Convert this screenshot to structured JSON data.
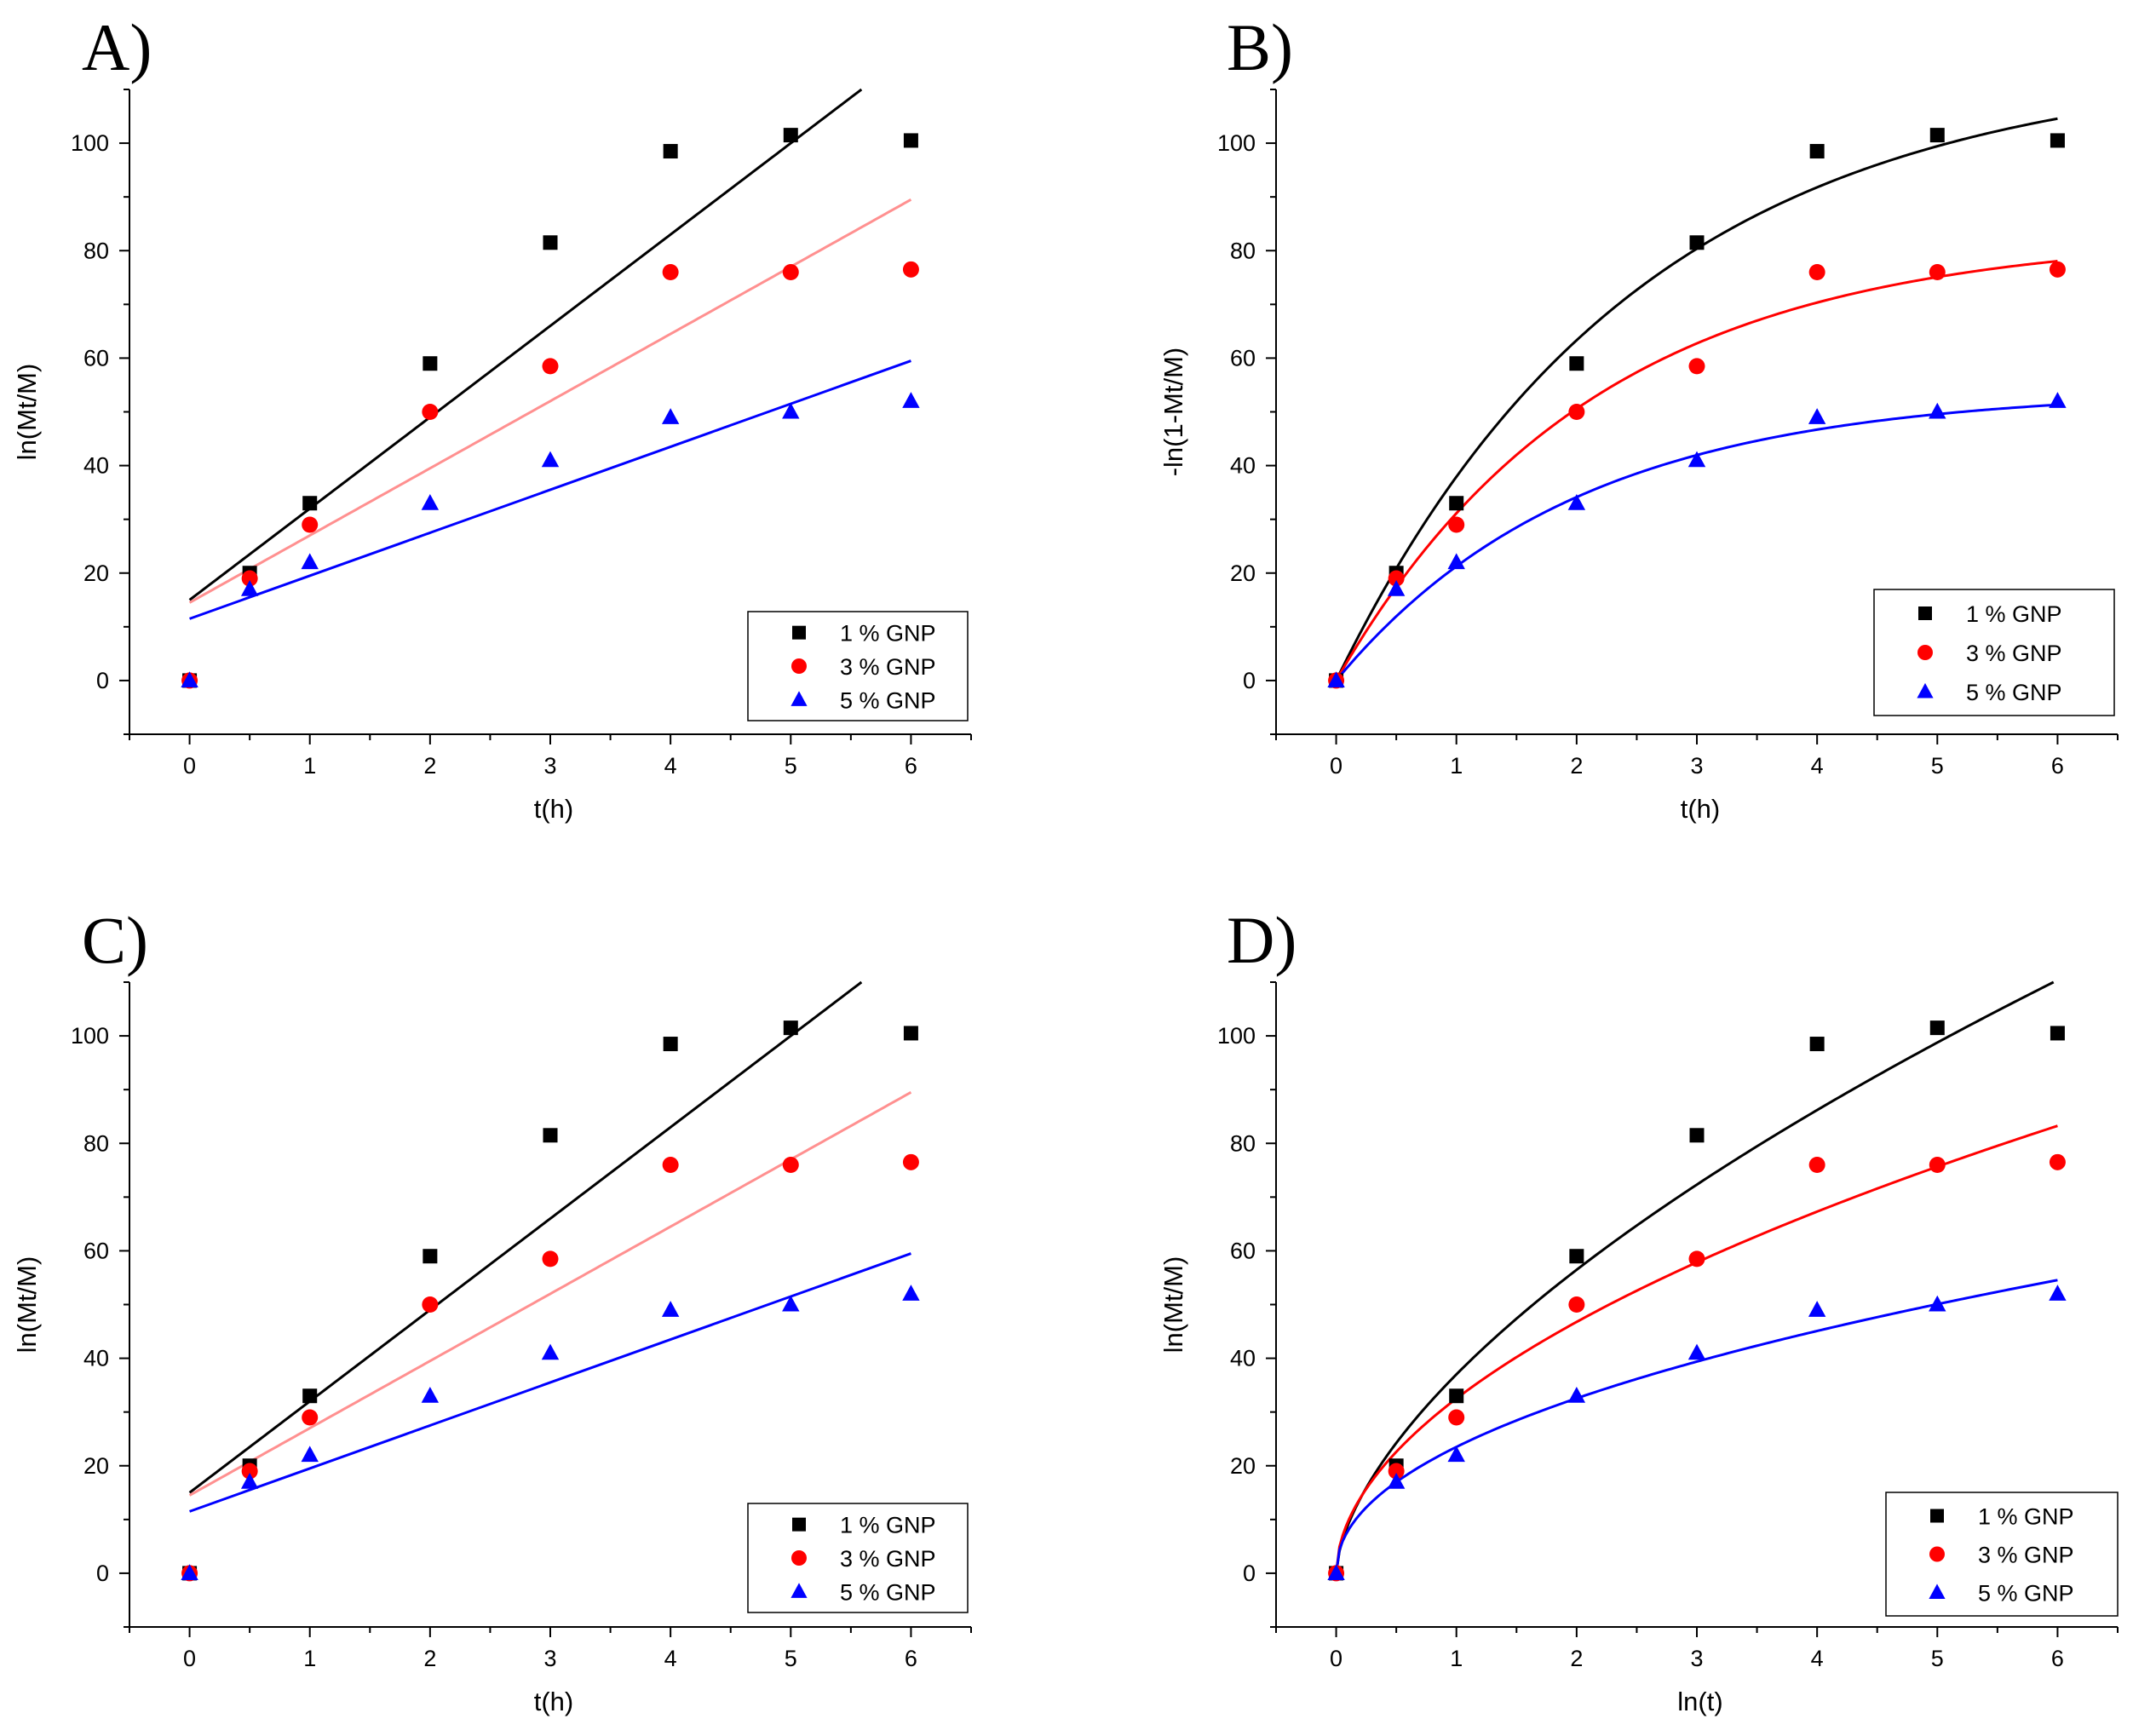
{
  "chart_data": [
    {
      "panel": "A)",
      "type": "scatter",
      "xlabel": "t(h)",
      "ylabel": "ln(Mt/M)",
      "xlim": [
        -0.5,
        6.5
      ],
      "ylim": [
        -10,
        110
      ],
      "xticks": [
        0,
        1,
        2,
        3,
        4,
        5,
        6
      ],
      "yticks": [
        0,
        20,
        40,
        60,
        80,
        100
      ],
      "x": [
        0,
        0.5,
        1,
        2,
        3,
        4,
        5,
        6
      ],
      "legend": "bottom-right",
      "series": [
        {
          "name": "1 % GNP",
          "color": "#000000",
          "marker": "square",
          "values": [
            0,
            20,
            33,
            59,
            81.5,
            98.5,
            101.5,
            100.5
          ],
          "fit": {
            "kind": "linear",
            "a": 15,
            "b": 17,
            "line_color": "#000000"
          }
        },
        {
          "name": "3 % GNP",
          "color": "#ff0000",
          "marker": "circle",
          "values": [
            0,
            19,
            29,
            50,
            58.5,
            76,
            76,
            76.5
          ],
          "fit": {
            "kind": "linear",
            "a": 14.5,
            "b": 12.5,
            "line_color": "#ff9090"
          }
        },
        {
          "name": "5 % GNP",
          "color": "#0000ff",
          "marker": "triangle",
          "values": [
            0,
            17,
            22,
            33,
            41,
            49,
            50,
            52
          ],
          "fit": {
            "kind": "linear",
            "a": 11.5,
            "b": 8,
            "line_color": "#0000ff"
          }
        }
      ]
    },
    {
      "panel": "B)",
      "type": "scatter",
      "xlabel": "t(h)",
      "ylabel": "-ln(1-Mt/M)",
      "xlim": [
        -0.5,
        6.5
      ],
      "ylim": [
        -10,
        110
      ],
      "xticks": [
        0,
        1,
        2,
        3,
        4,
        5,
        6
      ],
      "yticks": [
        0,
        20,
        40,
        60,
        80,
        100
      ],
      "x": [
        0,
        0.5,
        1,
        2,
        3,
        4,
        5,
        6
      ],
      "legend": "bottom-right",
      "series": [
        {
          "name": "1 % GNP",
          "color": "#000000",
          "marker": "square",
          "values": [
            0,
            20,
            33,
            59,
            81.5,
            98.5,
            101.5,
            100.5
          ],
          "fit": {
            "kind": "exp",
            "A": 115,
            "k": 0.4,
            "line_color": "#000000"
          }
        },
        {
          "name": "3 % GNP",
          "color": "#ff0000",
          "marker": "circle",
          "values": [
            0,
            19,
            29,
            50,
            58.5,
            76,
            76,
            76.5
          ],
          "fit": {
            "kind": "exp",
            "A": 83,
            "k": 0.47,
            "line_color": "#ff0000"
          }
        },
        {
          "name": "5 % GNP",
          "color": "#0000ff",
          "marker": "triangle",
          "values": [
            0,
            17,
            22,
            33,
            41,
            49,
            50,
            52
          ],
          "fit": {
            "kind": "exp",
            "A": 54,
            "k": 0.5,
            "line_color": "#0000ff"
          }
        }
      ]
    },
    {
      "panel": "C)",
      "type": "scatter",
      "xlabel": "t(h)",
      "ylabel": "ln(Mt/M)",
      "xlim": [
        -0.5,
        6.5
      ],
      "ylim": [
        -10,
        110
      ],
      "xticks": [
        0,
        1,
        2,
        3,
        4,
        5,
        6
      ],
      "yticks": [
        0,
        20,
        40,
        60,
        80,
        100
      ],
      "x": [
        0,
        0.5,
        1,
        2,
        3,
        4,
        5,
        6
      ],
      "legend": "bottom-right",
      "series": [
        {
          "name": "1 % GNP",
          "color": "#000000",
          "marker": "square",
          "values": [
            0,
            20,
            33,
            59,
            81.5,
            98.5,
            101.5,
            100.5
          ],
          "fit": {
            "kind": "linear",
            "a": 15,
            "b": 17,
            "line_color": "#000000"
          }
        },
        {
          "name": "3 % GNP",
          "color": "#ff0000",
          "marker": "circle",
          "values": [
            0,
            19,
            29,
            50,
            58.5,
            76,
            76,
            76.5
          ],
          "fit": {
            "kind": "linear",
            "a": 14.5,
            "b": 12.5,
            "line_color": "#ff9090"
          }
        },
        {
          "name": "5 % GNP",
          "color": "#0000ff",
          "marker": "triangle",
          "values": [
            0,
            17,
            22,
            33,
            41,
            49,
            50,
            52
          ],
          "fit": {
            "kind": "linear",
            "a": 11.5,
            "b": 8,
            "line_color": "#0000ff"
          }
        }
      ]
    },
    {
      "panel": "D)",
      "type": "scatter",
      "xlabel": "ln(t)",
      "ylabel": "ln(Mt/M)",
      "xlim": [
        -0.5,
        6.5
      ],
      "ylim": [
        -10,
        110
      ],
      "xticks": [
        0,
        1,
        2,
        3,
        4,
        5,
        6
      ],
      "yticks": [
        0,
        20,
        40,
        60,
        80,
        100
      ],
      "x": [
        0,
        0.5,
        1,
        2,
        3,
        4,
        5,
        6
      ],
      "legend": "bottom-right",
      "series": [
        {
          "name": "1 % GNP",
          "color": "#000000",
          "marker": "square",
          "values": [
            0,
            20,
            33,
            59,
            81.5,
            98.5,
            101.5,
            100.5
          ],
          "fit": {
            "kind": "power",
            "K": 37,
            "n": 0.61,
            "line_color": "#000000"
          }
        },
        {
          "name": "3 % GNP",
          "color": "#ff0000",
          "marker": "circle",
          "values": [
            0,
            19,
            29,
            50,
            58.5,
            76,
            76,
            76.5
          ],
          "fit": {
            "kind": "power",
            "K": 32.5,
            "n": 0.525,
            "line_color": "#ff0000"
          }
        },
        {
          "name": "5 % GNP",
          "color": "#0000ff",
          "marker": "triangle",
          "values": [
            0,
            17,
            22,
            33,
            41,
            49,
            50,
            52
          ],
          "fit": {
            "kind": "power",
            "K": 23.5,
            "n": 0.47,
            "line_color": "#0000ff"
          }
        }
      ]
    }
  ]
}
